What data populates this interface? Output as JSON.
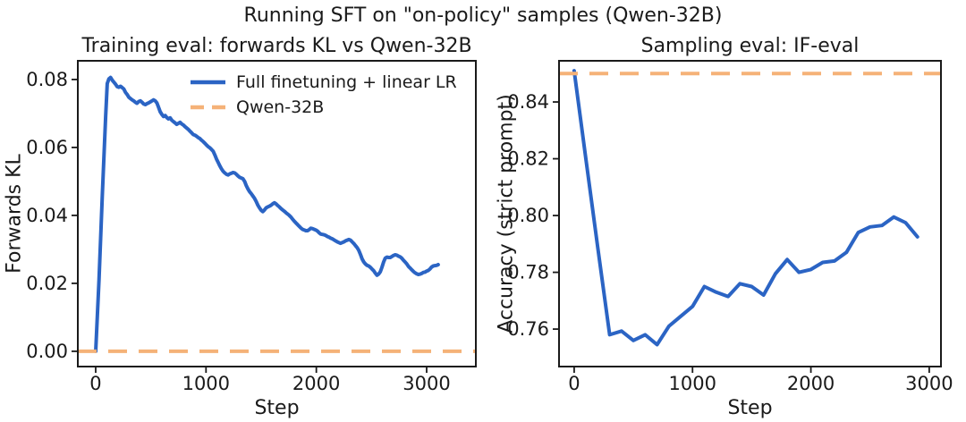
{
  "figure": {
    "title": "Running SFT on \"on-policy\" samples (Qwen-32B)",
    "background": "#ffffff"
  },
  "colors": {
    "finetune_blue": "#2b64c4",
    "baseline_orange": "#f5b278",
    "axis_black": "#1a1a1a"
  },
  "chart_data": [
    {
      "type": "line",
      "title": "Training eval: forwards KL vs Qwen-32B",
      "xlabel": "Step",
      "ylabel": "Forwards KL",
      "xlim": [
        -162,
        3446
      ],
      "ylim": [
        -0.0045,
        0.0855
      ],
      "xticks": [
        0,
        1000,
        2000,
        3000
      ],
      "xtick_labels": [
        "0",
        "1000",
        "2000",
        "3000"
      ],
      "yticks": [
        0.0,
        0.02,
        0.04,
        0.06,
        0.08
      ],
      "ytick_labels": [
        "0.00",
        "0.02",
        "0.04",
        "0.06",
        "0.08"
      ],
      "grid": false,
      "legend": {
        "visible": true,
        "frame": false,
        "position": "upper center-right"
      },
      "series": [
        {
          "name": "Full finetuning + linear LR",
          "style": "solid",
          "color": "#2b64c4",
          "points": [
            [
              0,
              0.0
            ],
            [
              30,
              0.021
            ],
            [
              60,
              0.046
            ],
            [
              90,
              0.069
            ],
            [
              105,
              0.0788
            ],
            [
              120,
              0.0802
            ],
            [
              135,
              0.0806
            ],
            [
              150,
              0.0798
            ],
            [
              165,
              0.0792
            ],
            [
              180,
              0.0786
            ],
            [
              195,
              0.0779
            ],
            [
              210,
              0.0777
            ],
            [
              225,
              0.078
            ],
            [
              240,
              0.0776
            ],
            [
              255,
              0.0772
            ],
            [
              270,
              0.0762
            ],
            [
              285,
              0.0756
            ],
            [
              300,
              0.0748
            ],
            [
              315,
              0.0744
            ],
            [
              330,
              0.074
            ],
            [
              345,
              0.0737
            ],
            [
              360,
              0.0733
            ],
            [
              375,
              0.073
            ],
            [
              390,
              0.0735
            ],
            [
              405,
              0.0737
            ],
            [
              420,
              0.0733
            ],
            [
              435,
              0.0728
            ],
            [
              450,
              0.0726
            ],
            [
              465,
              0.0729
            ],
            [
              480,
              0.0731
            ],
            [
              495,
              0.0734
            ],
            [
              510,
              0.0737
            ],
            [
              525,
              0.074
            ],
            [
              540,
              0.0737
            ],
            [
              555,
              0.0731
            ],
            [
              570,
              0.0718
            ],
            [
              585,
              0.0705
            ],
            [
              600,
              0.0697
            ],
            [
              615,
              0.0691
            ],
            [
              630,
              0.0694
            ],
            [
              645,
              0.0688
            ],
            [
              660,
              0.0684
            ],
            [
              675,
              0.0687
            ],
            [
              690,
              0.068
            ],
            [
              705,
              0.0676
            ],
            [
              720,
              0.0672
            ],
            [
              735,
              0.0668
            ],
            [
              750,
              0.0671
            ],
            [
              765,
              0.0674
            ],
            [
              780,
              0.0669
            ],
            [
              795,
              0.0666
            ],
            [
              810,
              0.0661
            ],
            [
              825,
              0.0657
            ],
            [
              840,
              0.0653
            ],
            [
              855,
              0.0648
            ],
            [
              870,
              0.0643
            ],
            [
              885,
              0.0638
            ],
            [
              900,
              0.0636
            ],
            [
              915,
              0.0633
            ],
            [
              930,
              0.0629
            ],
            [
              945,
              0.0626
            ],
            [
              960,
              0.0621
            ],
            [
              975,
              0.0617
            ],
            [
              990,
              0.0612
            ],
            [
              1005,
              0.0607
            ],
            [
              1020,
              0.0602
            ],
            [
              1035,
              0.0599
            ],
            [
              1050,
              0.0594
            ],
            [
              1065,
              0.0589
            ],
            [
              1080,
              0.0578
            ],
            [
              1095,
              0.0566
            ],
            [
              1110,
              0.0556
            ],
            [
              1125,
              0.0546
            ],
            [
              1140,
              0.0537
            ],
            [
              1155,
              0.053
            ],
            [
              1170,
              0.0525
            ],
            [
              1185,
              0.0521
            ],
            [
              1200,
              0.0519
            ],
            [
              1215,
              0.0522
            ],
            [
              1230,
              0.0524
            ],
            [
              1245,
              0.0526
            ],
            [
              1260,
              0.0525
            ],
            [
              1275,
              0.0521
            ],
            [
              1290,
              0.0516
            ],
            [
              1305,
              0.0512
            ],
            [
              1320,
              0.051
            ],
            [
              1335,
              0.0508
            ],
            [
              1350,
              0.05
            ],
            [
              1365,
              0.0488
            ],
            [
              1380,
              0.0478
            ],
            [
              1395,
              0.047
            ],
            [
              1410,
              0.0464
            ],
            [
              1425,
              0.0457
            ],
            [
              1440,
              0.045
            ],
            [
              1455,
              0.0441
            ],
            [
              1470,
              0.043
            ],
            [
              1485,
              0.0422
            ],
            [
              1500,
              0.0415
            ],
            [
              1515,
              0.0411
            ],
            [
              1530,
              0.0416
            ],
            [
              1545,
              0.0422
            ],
            [
              1560,
              0.0425
            ],
            [
              1575,
              0.0427
            ],
            [
              1590,
              0.043
            ],
            [
              1605,
              0.0434
            ],
            [
              1620,
              0.0437
            ],
            [
              1635,
              0.0434
            ],
            [
              1650,
              0.0429
            ],
            [
              1665,
              0.0425
            ],
            [
              1680,
              0.042
            ],
            [
              1695,
              0.0416
            ],
            [
              1710,
              0.0412
            ],
            [
              1725,
              0.0408
            ],
            [
              1740,
              0.0404
            ],
            [
              1755,
              0.04
            ],
            [
              1770,
              0.0395
            ],
            [
              1785,
              0.0389
            ],
            [
              1800,
              0.0383
            ],
            [
              1815,
              0.0378
            ],
            [
              1830,
              0.0373
            ],
            [
              1845,
              0.0368
            ],
            [
              1860,
              0.0363
            ],
            [
              1875,
              0.0359
            ],
            [
              1890,
              0.0357
            ],
            [
              1905,
              0.0355
            ],
            [
              1920,
              0.0355
            ],
            [
              1935,
              0.0358
            ],
            [
              1950,
              0.0362
            ],
            [
              1965,
              0.0361
            ],
            [
              1980,
              0.0359
            ],
            [
              1995,
              0.0357
            ],
            [
              2010,
              0.0354
            ],
            [
              2025,
              0.0349
            ],
            [
              2040,
              0.0345
            ],
            [
              2055,
              0.0344
            ],
            [
              2070,
              0.0343
            ],
            [
              2085,
              0.0341
            ],
            [
              2100,
              0.0338
            ],
            [
              2115,
              0.0336
            ],
            [
              2130,
              0.0333
            ],
            [
              2145,
              0.0331
            ],
            [
              2160,
              0.0328
            ],
            [
              2175,
              0.0325
            ],
            [
              2190,
              0.0322
            ],
            [
              2205,
              0.032
            ],
            [
              2220,
              0.0318
            ],
            [
              2235,
              0.032
            ],
            [
              2250,
              0.0322
            ],
            [
              2265,
              0.0325
            ],
            [
              2280,
              0.0327
            ],
            [
              2295,
              0.0329
            ],
            [
              2310,
              0.0327
            ],
            [
              2325,
              0.0322
            ],
            [
              2340,
              0.0317
            ],
            [
              2355,
              0.0311
            ],
            [
              2370,
              0.0305
            ],
            [
              2385,
              0.0297
            ],
            [
              2400,
              0.0285
            ],
            [
              2415,
              0.0272
            ],
            [
              2430,
              0.0263
            ],
            [
              2445,
              0.0257
            ],
            [
              2460,
              0.0253
            ],
            [
              2475,
              0.0251
            ],
            [
              2490,
              0.0247
            ],
            [
              2505,
              0.0242
            ],
            [
              2520,
              0.0237
            ],
            [
              2535,
              0.023
            ],
            [
              2550,
              0.0224
            ],
            [
              2565,
              0.0227
            ],
            [
              2580,
              0.0234
            ],
            [
              2595,
              0.0247
            ],
            [
              2610,
              0.0263
            ],
            [
              2625,
              0.0274
            ],
            [
              2640,
              0.0277
            ],
            [
              2655,
              0.0276
            ],
            [
              2670,
              0.0276
            ],
            [
              2685,
              0.0279
            ],
            [
              2700,
              0.0282
            ],
            [
              2715,
              0.0284
            ],
            [
              2730,
              0.0283
            ],
            [
              2745,
              0.028
            ],
            [
              2760,
              0.0278
            ],
            [
              2775,
              0.0274
            ],
            [
              2790,
              0.0268
            ],
            [
              2805,
              0.0263
            ],
            [
              2820,
              0.0257
            ],
            [
              2835,
              0.025
            ],
            [
              2850,
              0.0245
            ],
            [
              2865,
              0.024
            ],
            [
              2880,
              0.0235
            ],
            [
              2895,
              0.0231
            ],
            [
              2910,
              0.0228
            ],
            [
              2925,
              0.0226
            ],
            [
              2940,
              0.0227
            ],
            [
              2955,
              0.0229
            ],
            [
              2970,
              0.0232
            ],
            [
              2985,
              0.0233
            ],
            [
              3000,
              0.0236
            ],
            [
              3015,
              0.0238
            ],
            [
              3030,
              0.0242
            ],
            [
              3045,
              0.0248
            ],
            [
              3060,
              0.0251
            ],
            [
              3075,
              0.0252
            ],
            [
              3090,
              0.0253
            ],
            [
              3105,
              0.0255
            ]
          ]
        },
        {
          "name": "Qwen-32B",
          "style": "dashed",
          "color": "#f5b278",
          "hline": 0.0
        }
      ]
    },
    {
      "type": "line",
      "title": "Sampling eval: IF-eval",
      "xlabel": "Step",
      "ylabel": "Accuracy (strict prompt)",
      "xlim": [
        -128,
        3099
      ],
      "ylim": [
        0.7468,
        0.8545
      ],
      "xticks": [
        0,
        1000,
        2000,
        3000
      ],
      "xtick_labels": [
        "0",
        "1000",
        "2000",
        "3000"
      ],
      "yticks": [
        0.76,
        0.78,
        0.8,
        0.82,
        0.84
      ],
      "ytick_labels": [
        "0.76",
        "0.78",
        "0.80",
        "0.82",
        "0.84"
      ],
      "grid": false,
      "legend": {
        "visible": false,
        "frame": false,
        "position": "none"
      },
      "series": [
        {
          "name": "Full finetuning + linear LR",
          "style": "solid",
          "color": "#2b64c4",
          "points": [
            [
              0,
              0.851
            ],
            [
              100,
              0.8195
            ],
            [
              200,
              0.7885
            ],
            [
              300,
              0.758
            ],
            [
              400,
              0.7593
            ],
            [
              500,
              0.756
            ],
            [
              600,
              0.758
            ],
            [
              700,
              0.7545
            ],
            [
              800,
              0.761
            ],
            [
              900,
              0.7645
            ],
            [
              1000,
              0.768
            ],
            [
              1100,
              0.775
            ],
            [
              1200,
              0.773
            ],
            [
              1300,
              0.7715
            ],
            [
              1400,
              0.776
            ],
            [
              1500,
              0.775
            ],
            [
              1600,
              0.772
            ],
            [
              1700,
              0.7795
            ],
            [
              1800,
              0.7845
            ],
            [
              1900,
              0.78
            ],
            [
              2000,
              0.781
            ],
            [
              2100,
              0.7835
            ],
            [
              2200,
              0.784
            ],
            [
              2300,
              0.787
            ],
            [
              2400,
              0.794
            ],
            [
              2500,
              0.796
            ],
            [
              2600,
              0.7965
            ],
            [
              2700,
              0.7995
            ],
            [
              2800,
              0.7975
            ],
            [
              2900,
              0.7925
            ]
          ]
        },
        {
          "name": "Qwen-32B",
          "style": "dashed",
          "color": "#f5b278",
          "hline": 0.85
        }
      ]
    }
  ]
}
